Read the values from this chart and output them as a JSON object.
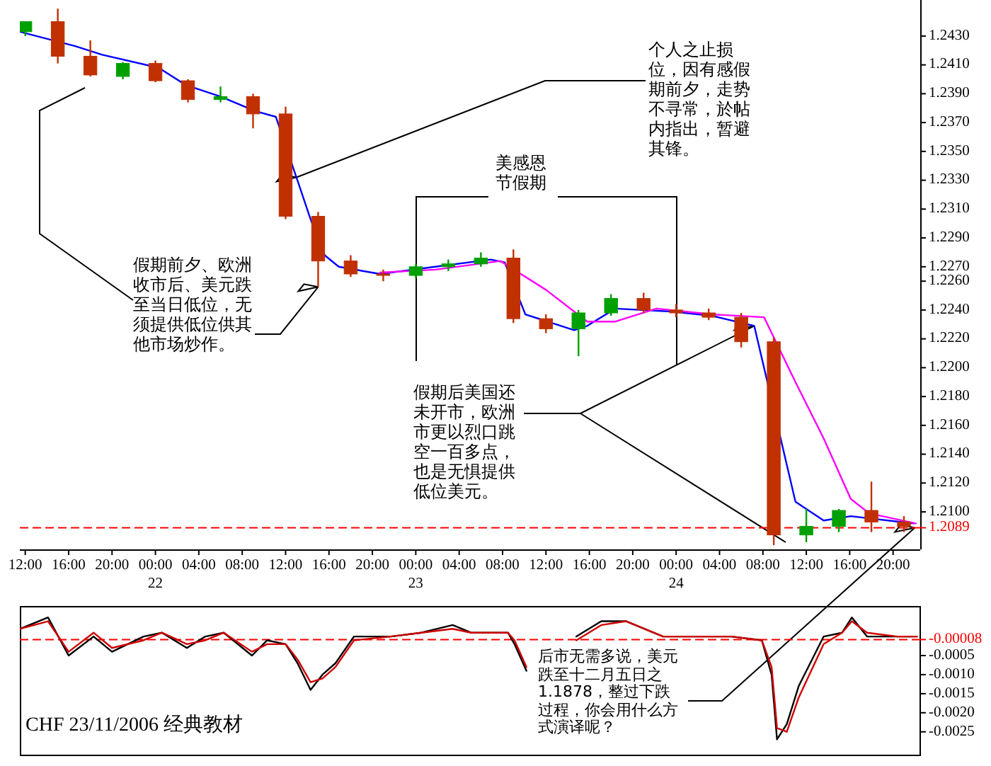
{
  "chart_data": [
    {
      "type": "candlestick",
      "x": [
        "2006-11-21T12:00",
        "2006-11-21T15:00",
        "2006-11-21T18:00",
        "2006-11-21T21:00",
        "2006-11-22T00:00",
        "2006-11-22T03:00",
        "2006-11-22T06:00",
        "2006-11-22T09:00",
        "2006-11-22T12:00",
        "2006-11-22T15:00",
        "2006-11-22T18:00",
        "2006-11-22T21:00",
        "2006-11-23T00:00",
        "2006-11-23T03:00",
        "2006-11-23T06:00",
        "2006-11-23T09:00",
        "2006-11-23T12:00",
        "2006-11-23T15:00",
        "2006-11-23T18:00",
        "2006-11-23T21:00",
        "2006-11-24T00:00",
        "2006-11-24T03:00",
        "2006-11-24T06:00",
        "2006-11-24T09:00",
        "2006-11-24T12:00",
        "2006-11-24T15:00",
        "2006-11-24T18:00",
        "2006-11-24T21:00"
      ],
      "ohlc": [
        [
          1.2433,
          1.244,
          1.243,
          1.244
        ],
        [
          1.244,
          1.2449,
          1.2411,
          1.2416
        ],
        [
          1.2416,
          1.2427,
          1.2402,
          1.2403
        ],
        [
          1.2402,
          1.2412,
          1.24,
          1.2411
        ],
        [
          1.2411,
          1.2413,
          1.2398,
          1.2399
        ],
        [
          1.2399,
          1.24,
          1.2384,
          1.2386
        ],
        [
          1.2386,
          1.2395,
          1.2384,
          1.2388
        ],
        [
          1.2388,
          1.239,
          1.2366,
          1.2376
        ],
        [
          1.2376,
          1.2381,
          1.2303,
          1.2305
        ],
        [
          1.2305,
          1.2308,
          1.2256,
          1.2274
        ],
        [
          1.2274,
          1.2278,
          1.2263,
          1.2265
        ],
        [
          1.2265,
          1.2268,
          1.226,
          1.2264
        ],
        [
          1.2264,
          1.2272,
          1.2262,
          1.227
        ],
        [
          1.227,
          1.2275,
          1.2267,
          1.2272
        ],
        [
          1.2272,
          1.228,
          1.227,
          1.2276
        ],
        [
          1.2276,
          1.2282,
          1.2231,
          1.2234
        ],
        [
          1.2234,
          1.2237,
          1.2224,
          1.2227
        ],
        [
          1.2227,
          1.224,
          1.2208,
          1.2238
        ],
        [
          1.2238,
          1.2251,
          1.2236,
          1.2248
        ],
        [
          1.2248,
          1.2252,
          1.2238,
          1.224
        ],
        [
          1.224,
          1.2244,
          1.2235,
          1.2238
        ],
        [
          1.2238,
          1.2241,
          1.2233,
          1.2235
        ],
        [
          1.2235,
          1.2238,
          1.2214,
          1.2218
        ],
        [
          1.2218,
          1.2221,
          1.2077,
          1.2084
        ],
        [
          1.2084,
          1.2102,
          1.2079,
          1.209
        ],
        [
          1.209,
          1.2102,
          1.2086,
          1.2101
        ],
        [
          1.2101,
          1.2121,
          1.2086,
          1.2093
        ],
        [
          1.2093,
          1.2097,
          1.2086,
          1.209
        ]
      ],
      "colors": [
        "#00a000",
        "#c03000",
        "#c03000",
        "#00a000",
        "#c03000",
        "#c03000",
        "#00a000",
        "#c03000",
        "#c03000",
        "#c03000",
        "#c03000",
        "#c03000",
        "#00a000",
        "#00a000",
        "#00a000",
        "#c03000",
        "#c03000",
        "#00a000",
        "#00a000",
        "#c03000",
        "#c03000",
        "#c03000",
        "#c03000",
        "#c03000",
        "#00a000",
        "#00a000",
        "#c03000",
        "#c03000"
      ],
      "series": [
        {
          "type": "line",
          "color": "#0000ff",
          "x": [
            "2006-11-21T11:30",
            "2006-11-21T16:36",
            "2006-11-21T19:06",
            "2006-11-22T00:18",
            "2006-11-22T02:48",
            "2006-11-22T06:00",
            "2006-11-22T09:12",
            "2006-11-22T11:06",
            "2006-11-22T13:00",
            "2006-11-22T14:18",
            "2006-11-22T15:36",
            "2006-11-22T16:54",
            "2006-11-22T20:42",
            "2006-11-23T01:48",
            "2006-11-23T06:54",
            "2006-11-23T08:12",
            "2006-11-23T10:06",
            "2006-11-23T14:36",
            "2006-11-23T15:48",
            "2006-11-23T18:24",
            "2006-11-23T23:30",
            "2006-11-24T03:18",
            "2006-11-24T07:12",
            "2006-11-24T11:00",
            "2006-11-24T13:36",
            "2006-11-24T16:06",
            "2006-11-24T21:54"
          ],
          "values": [
            1.2433,
            1.2423,
            1.2417,
            1.2408,
            1.2396,
            1.2388,
            1.2378,
            1.2374,
            1.2332,
            1.2303,
            1.2278,
            1.227,
            1.2265,
            1.227,
            1.2275,
            1.2273,
            1.2237,
            1.2226,
            1.2229,
            1.2241,
            1.2239,
            1.2236,
            1.2229,
            1.2107,
            1.2094,
            1.2097,
            1.2092
          ]
        },
        {
          "type": "line",
          "color": "#ff00ff",
          "x": [
            "2006-11-22T20:42",
            "2006-11-23T01:48",
            "2006-11-23T07:48",
            "2006-11-23T12:00",
            "2006-11-23T15:48",
            "2006-11-23T18:24",
            "2006-11-23T22:12",
            "2006-11-24T03:18",
            "2006-11-24T08:06",
            "2006-11-24T11:00",
            "2006-11-24T13:36",
            "2006-11-24T16:06",
            "2006-11-24T17:48",
            "2006-11-24T22:06"
          ],
          "values": [
            1.2266,
            1.2268,
            1.2274,
            1.2254,
            1.2232,
            1.2232,
            1.2241,
            1.2237,
            1.2235,
            1.219,
            1.2151,
            1.2109,
            1.2099,
            1.2092
          ]
        }
      ],
      "xlim": [
        "2006-11-21T11:30",
        "2006-11-24T22:30"
      ],
      "xticks": [
        {
          "value": "2006-11-21T12:00",
          "label": "12:00"
        },
        {
          "value": "2006-11-21T16:00",
          "label": "16:00"
        },
        {
          "value": "2006-11-21T20:00",
          "label": "20:00"
        },
        {
          "value": "2006-11-22T00:00",
          "label": "00:00\n22"
        },
        {
          "value": "2006-11-22T04:00",
          "label": "04:00"
        },
        {
          "value": "2006-11-22T08:00",
          "label": "08:00"
        },
        {
          "value": "2006-11-22T12:00",
          "label": "12:00"
        },
        {
          "value": "2006-11-22T16:00",
          "label": "16:00"
        },
        {
          "value": "2006-11-22T20:00",
          "label": "20:00"
        },
        {
          "value": "2006-11-23T00:00",
          "label": "00:00\n23"
        },
        {
          "value": "2006-11-23T04:00",
          "label": "04:00"
        },
        {
          "value": "2006-11-23T08:00",
          "label": "08:00"
        },
        {
          "value": "2006-11-23T12:00",
          "label": "12:00"
        },
        {
          "value": "2006-11-23T16:00",
          "label": "16:00"
        },
        {
          "value": "2006-11-23T20:00",
          "label": "20:00"
        },
        {
          "value": "2006-11-24T00:00",
          "label": "00:00\n24"
        },
        {
          "value": "2006-11-24T04:00",
          "label": "04:00"
        },
        {
          "value": "2006-11-24T08:00",
          "label": "08:00"
        },
        {
          "value": "2006-11-24T12:00",
          "label": "12:00"
        },
        {
          "value": "2006-11-24T16:00",
          "label": "16:00"
        },
        {
          "value": "2006-11-24T20:00",
          "label": "20:00"
        }
      ],
      "ylim": [
        1.2074,
        1.2455
      ],
      "yticks": [
        {
          "value": 1.243,
          "label": "1.2430"
        },
        {
          "value": 1.241,
          "label": "1.2410"
        },
        {
          "value": 1.239,
          "label": "1.2390"
        },
        {
          "value": 1.237,
          "label": "1.2370"
        },
        {
          "value": 1.235,
          "label": "1.2350"
        },
        {
          "value": 1.233,
          "label": "1.2330"
        },
        {
          "value": 1.231,
          "label": "1.2310"
        },
        {
          "value": 1.229,
          "label": "1.2290"
        },
        {
          "value": 1.227,
          "label": "1.2270"
        },
        {
          "value": 1.226,
          "label": "1.2260"
        },
        {
          "value": 1.224,
          "label": "1.2240"
        },
        {
          "value": 1.222,
          "label": "1.2220"
        },
        {
          "value": 1.22,
          "label": "1.2200"
        },
        {
          "value": 1.218,
          "label": "1.2180"
        },
        {
          "value": 1.216,
          "label": "1.2160"
        },
        {
          "value": 1.214,
          "label": "1.2140"
        },
        {
          "value": 1.212,
          "label": "1.2120"
        },
        {
          "value": 1.21,
          "label": "1.2100"
        }
      ],
      "ref_lines": [
        {
          "axis": "y",
          "value": 1.2089,
          "label": "1.2089",
          "color": "#ff0000",
          "line_style": "dashed"
        }
      ],
      "annotations": [
        {
          "text": "假期前夕、欧洲收市后、美元跌至当日低位，无须提供低位供其他市场炒作。",
          "x": "2006-11-22T15:00",
          "y": 1.2256
        },
        {
          "text": "个人之止损位，因有感假期前夕，走势不寻常，於帖内指出，暂避其锋。",
          "x": "2006-11-22T13:00",
          "y": 1.2332
        },
        "美感恩节假期",
        {
          "text": "假期后美国还未开市，欧洲市更以烈口跳空一百多点，也是无惧提供低位美元。",
          "x": "2006-11-24T07:12",
          "y": 1.2229
        },
        {
          "text": "后市无需多说，美元跌至十二月五日之1.1878，整过下跌过程，你会用什么方式演译呢？",
          "x": "2006-11-24T22:00",
          "y": 1.2089
        }
      ]
    },
    {
      "type": "line",
      "tick_labels": "y",
      "series": [
        {
          "color": "#000000",
          "x": [
            "2006-11-21T11:30",
            "2006-11-21T14:06",
            "2006-11-21T16:00",
            "2006-11-21T18:18",
            "2006-11-21T20:00",
            "2006-11-21T22:54",
            "2006-11-22T00:36",
            "2006-11-22T02:54",
            "2006-11-22T04:36",
            "2006-11-22T06:18",
            "2006-11-22T08:54",
            "2006-11-22T10:18",
            "2006-11-22T12:00",
            "2006-11-22T13:06",
            "2006-11-22T14:18",
            "2006-11-22T15:24",
            "2006-11-22T16:36",
            "2006-11-22T18:18",
            "2006-11-22T21:42",
            "2006-11-23T00:30",
            "2006-11-23T03:24",
            "2006-11-23T05:06",
            "2006-11-23T08:30",
            "2006-11-23T09:06",
            "2006-11-23T10:12",
            "2006-11-23T12:00",
            "2006-11-23T14:48",
            "2006-11-23T17:06",
            "2006-11-23T19:24",
            "2006-11-23T22:48",
            "2006-11-24T02:12",
            "2006-11-24T05:06",
            "2006-11-24T07:54",
            "2006-11-24T08:48",
            "2006-11-24T09:18",
            "2006-11-24T10:12",
            "2006-11-24T11:18",
            "2006-11-24T13:36",
            "2006-11-24T15:18",
            "2006-11-24T16:12",
            "2006-11-24T17:36",
            "2006-11-24T20:24",
            "2006-11-24T22:12"
          ],
          "values": [
            0.0002,
            0.0005,
            -0.0005,
            0.0,
            -0.0004,
            0.0,
            0.0001,
            -0.0003,
            0.0,
            0.0001,
            -0.0005,
            -0.0001,
            -0.0002,
            -0.0007,
            -0.0014,
            -0.001,
            -0.0007,
            0.0,
            0.0,
            0.0001,
            0.0003,
            0.0001,
            0.0001,
            -0.0002,
            -0.0009,
            null,
            0.0,
            0.0004,
            0.0004,
            0.0,
            0.0,
            0.0,
            -0.0001,
            -0.001,
            -0.0027,
            -0.0023,
            -0.0013,
            0.0,
            0.0001,
            0.0005,
            0.0,
            0.0,
            0.0
          ]
        },
        {
          "color": "#d00000",
          "x": [
            "2006-11-21T11:30",
            "2006-11-21T14:06",
            "2006-11-21T16:00",
            "2006-11-21T18:18",
            "2006-11-21T20:00",
            "2006-11-21T22:54",
            "2006-11-22T00:36",
            "2006-11-22T02:54",
            "2006-11-22T04:36",
            "2006-11-22T06:18",
            "2006-11-22T08:54",
            "2006-11-22T10:18",
            "2006-11-22T12:00",
            "2006-11-22T13:06",
            "2006-11-22T14:18",
            "2006-11-22T15:24",
            "2006-11-22T16:36",
            "2006-11-22T18:18",
            "2006-11-22T21:42",
            "2006-11-23T00:30",
            "2006-11-23T03:24",
            "2006-11-23T05:06",
            "2006-11-23T08:30",
            "2006-11-23T09:06",
            "2006-11-23T10:12",
            "2006-11-23T12:00",
            "2006-11-23T14:48",
            "2006-11-23T17:06",
            "2006-11-23T19:24",
            "2006-11-23T22:48",
            "2006-11-24T02:12",
            "2006-11-24T05:06",
            "2006-11-24T07:54",
            "2006-11-24T08:48",
            "2006-11-24T09:18",
            "2006-11-24T10:12",
            "2006-11-24T11:18",
            "2006-11-24T13:36",
            "2006-11-24T15:18",
            "2006-11-24T16:12",
            "2006-11-24T17:36",
            "2006-11-24T20:24",
            "2006-11-24T22:12"
          ],
          "values": [
            0.0002,
            0.0004,
            -0.0004,
            0.0001,
            -0.0003,
            -0.0001,
            0.0001,
            -0.0002,
            -0.0001,
            0.0001,
            -0.0004,
            -0.0002,
            -0.0002,
            -0.0006,
            -0.0012,
            -0.0011,
            -0.0008,
            -0.0001,
            0.0,
            0.0001,
            0.0002,
            0.0001,
            0.0001,
            -0.0001,
            -0.0008,
            null,
            -0.0001,
            0.0003,
            0.0004,
            0.0,
            0.0,
            0.0,
            -0.0001,
            -0.0008,
            -0.0024,
            -0.0025,
            -0.0016,
            -0.0002,
            0.0001,
            0.0004,
            0.0001,
            0.0,
            0.0
          ]
        }
      ],
      "xlim": [
        "2006-11-21T11:30",
        "2006-11-24T22:30"
      ],
      "ylim": [
        -0.0031,
        0.0008
      ],
      "yticks": [
        {
          "value": -0.0005,
          "label": "-0.0005"
        },
        {
          "value": -0.001,
          "label": "-0.0010"
        },
        {
          "value": -0.0015,
          "label": "-0.0015"
        },
        {
          "value": -0.002,
          "label": "-0.0020"
        },
        {
          "value": -0.0025,
          "label": "-0.0025"
        }
      ],
      "ref_lines": [
        {
          "axis": "y",
          "value": -8e-05,
          "label": "-0.00008",
          "color": "#ff0000",
          "line_style": "dashed"
        }
      ],
      "annotations": [
        "CHF 23/11/2006 经典教材"
      ]
    }
  ]
}
